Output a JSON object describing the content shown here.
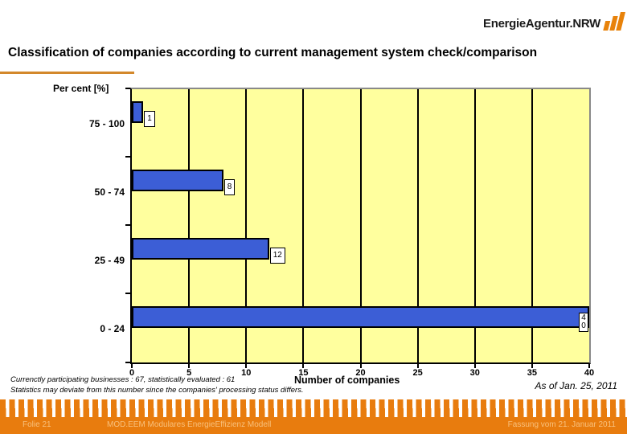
{
  "header": {
    "logo_text": "EnergieAgentur.NRW",
    "title": "Classification of companies according to current management system check/comparison"
  },
  "chart_data": {
    "type": "bar",
    "orientation": "horizontal",
    "y_axis_title": "Per cent [%]",
    "x_axis_title": "Number of companies",
    "categories": [
      "75 - 100",
      "50 - 74",
      "25 - 49",
      "0 - 24"
    ],
    "values": [
      1,
      8,
      12,
      40
    ],
    "x_ticks": [
      0,
      5,
      10,
      15,
      20,
      25,
      30,
      35,
      40
    ],
    "xlim": [
      0,
      40
    ],
    "grid": true,
    "legend": "none",
    "plot_bg": "#ffff9e",
    "bar_color": "#3c5ed6",
    "gridline_color": "#000000"
  },
  "notes": {
    "line1": "Currenctly participating businesses : 67, statistically evaluated : 61",
    "line2": "Statistics may deviate from this number since the companies' processing status differs.",
    "as_of": "As of Jan. 25, 2011"
  },
  "footer": {
    "left": "Folie 21",
    "center": "MOD.EEM Modulares EnergieEffizienz Modell",
    "right": "Fassung vom 21. Januar 2011"
  },
  "colors": {
    "accent_orange": "#e87c0e",
    "title_underline": "#d3882b"
  }
}
